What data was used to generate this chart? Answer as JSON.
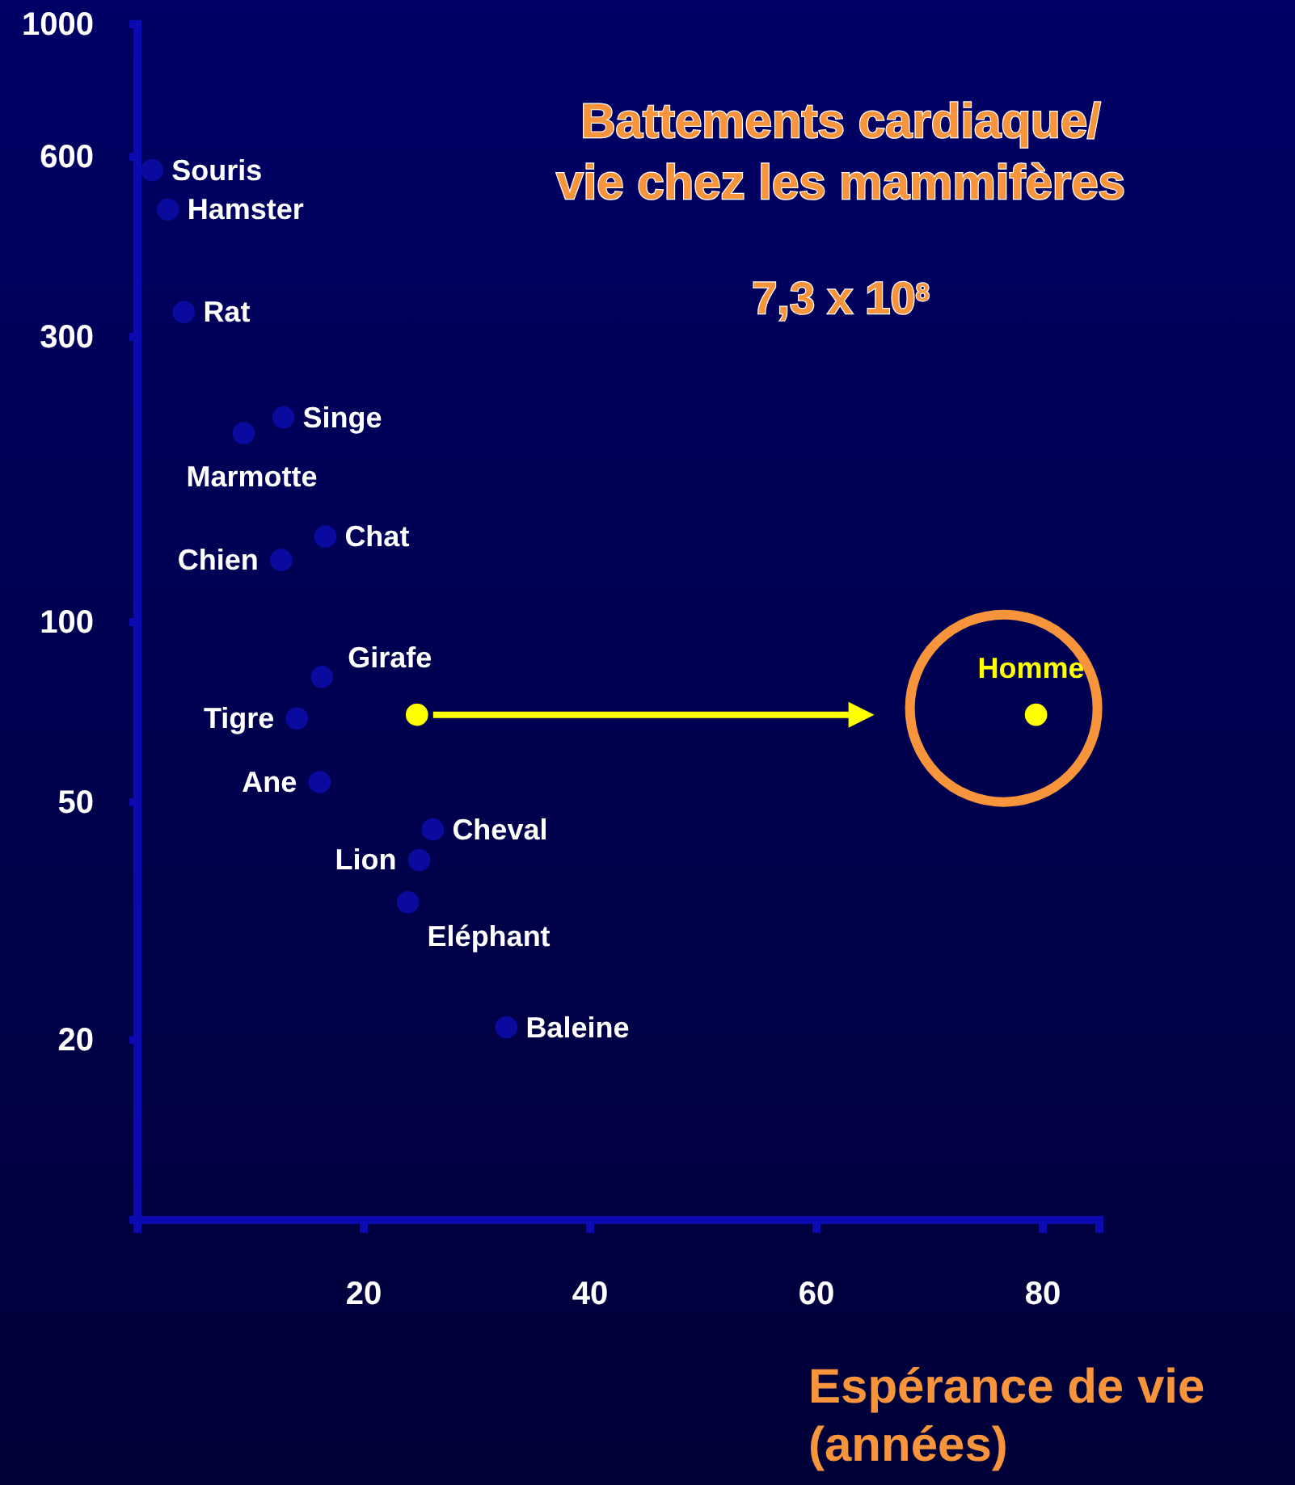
{
  "chart_data": {
    "type": "scatter",
    "title": "Battements cardiaque/\nvie chez les mammifères",
    "subtitle": "7,3 x 10$^{8}$",
    "xlabel": "Espérance de vie\n(années)",
    "log": "y",
    "grid": false,
    "marker": "circle",
    "xlim": [
      0,
      85
    ],
    "xticks": [
      20,
      40,
      60,
      80
    ],
    "ylim": [
      10,
      1000
    ],
    "yticks": [
      20,
      50,
      100,
      300,
      600,
      1000
    ],
    "series": [
      {
        "name": "Souris",
        "color": "#0a0a9e",
        "x": [
          1.3
        ],
        "values": [
          570
        ]
      },
      {
        "name": "Hamster",
        "color": "#0a0a9e",
        "x": [
          2.7
        ],
        "values": [
          490
        ]
      },
      {
        "name": "Rat",
        "color": "#0a0a9e",
        "x": [
          4.1
        ],
        "values": [
          330
        ]
      },
      {
        "name": "Singe",
        "color": "#0a0a9e",
        "x": [
          12.9
        ],
        "values": [
          220
        ]
      },
      {
        "name": "Marmotte",
        "color": "#0a0a9e",
        "x": [
          9.4
        ],
        "values": [
          207
        ]
      },
      {
        "name": "Chat",
        "color": "#0a0a9e",
        "x": [
          16.6
        ],
        "values": [
          139
        ]
      },
      {
        "name": "Chien",
        "color": "#0a0a9e",
        "x": [
          12.7
        ],
        "values": [
          127
        ]
      },
      {
        "name": "Girafe",
        "color": "#0a0a9e",
        "x": [
          16.3
        ],
        "values": [
          81
        ]
      },
      {
        "name": "Tigre",
        "color": "#0a0a9e",
        "x": [
          14.1
        ],
        "values": [
          69
        ]
      },
      {
        "name": "Ane",
        "color": "#0a0a9e",
        "x": [
          16.1
        ],
        "values": [
          54
        ]
      },
      {
        "name": "Cheval",
        "color": "#0a0a9e",
        "x": [
          26.1
        ],
        "values": [
          45
        ]
      },
      {
        "name": "Lion",
        "color": "#0a0a9e",
        "x": [
          24.9
        ],
        "values": [
          40
        ]
      },
      {
        "name": "Eléphant",
        "color": "#0a0a9e",
        "x": [
          23.9
        ],
        "values": [
          34
        ]
      },
      {
        "name": "Baleine",
        "color": "#0a0a9e",
        "x": [
          32.6
        ],
        "values": [
          21
        ]
      },
      {
        "name": "Homme",
        "color": "#ffff00",
        "x": [
          24.7,
          79.4
        ],
        "values": [
          70,
          70
        ]
      }
    ]
  }
}
